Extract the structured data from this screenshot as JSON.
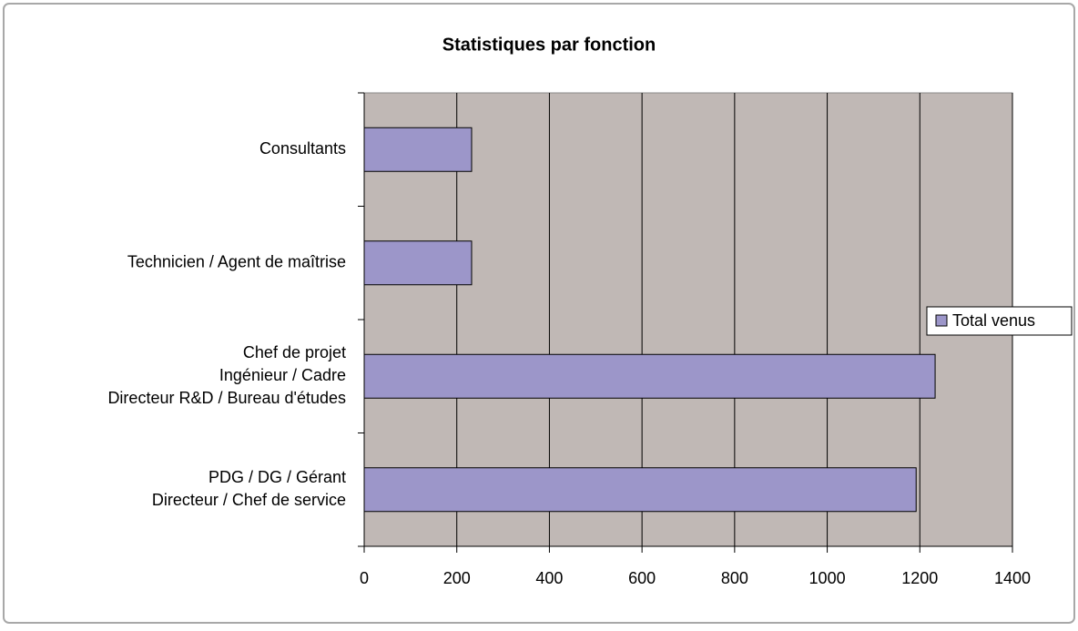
{
  "chart_data": {
    "type": "bar",
    "orientation": "horizontal",
    "title": "Statistiques par fonction",
    "categories": [
      [
        "Consultants"
      ],
      [
        "Technicien / Agent de maîtrise"
      ],
      [
        "Chef de projet",
        "Ingénieur / Cadre",
        "Directeur R&D / Bureau d'études"
      ],
      [
        "PDG / DG / Gérant",
        "Directeur / Chef de service"
      ]
    ],
    "series": [
      {
        "name": "Total venus",
        "color": "#9c96c9",
        "values": [
          232,
          232,
          1233,
          1192
        ]
      }
    ],
    "xlim": [
      0,
      1400
    ],
    "xticks": [
      0,
      200,
      400,
      600,
      800,
      1000,
      1200,
      1400
    ],
    "grid": true,
    "legend": "right"
  }
}
